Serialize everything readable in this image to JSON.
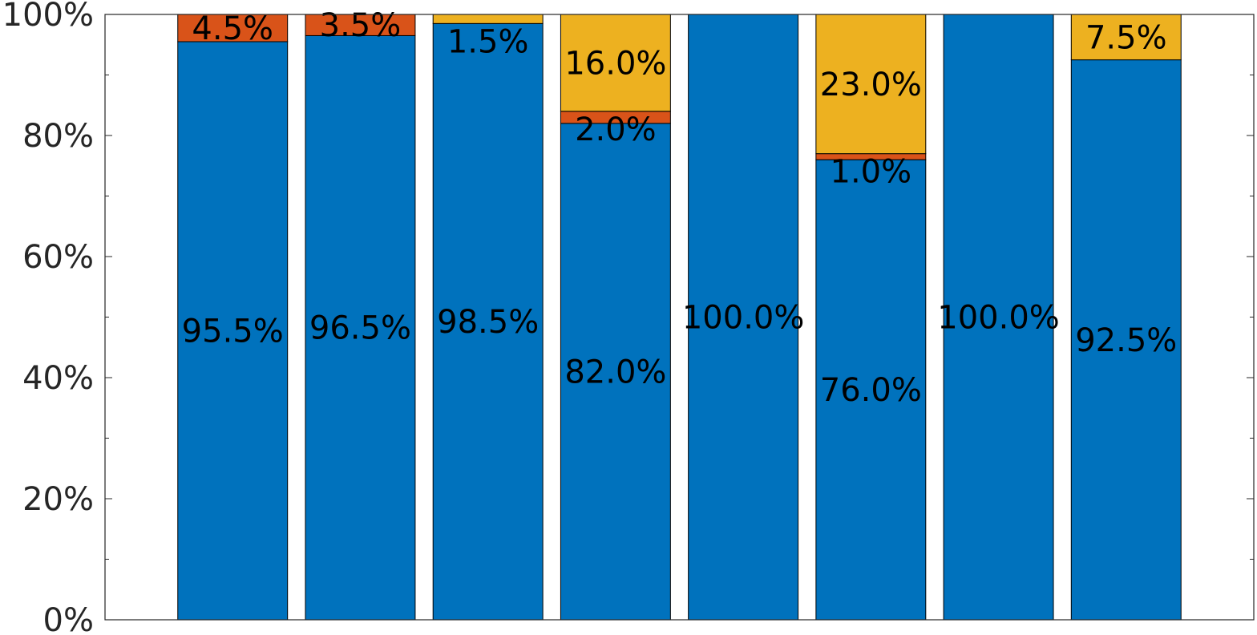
{
  "chart_data": {
    "type": "bar",
    "stacked": true,
    "categories": [
      "",
      "",
      "",
      "",
      "",
      "",
      "",
      ""
    ],
    "series": [
      {
        "color": "#0072BD",
        "values": [
          95.5,
          96.5,
          98.5,
          82.0,
          100.0,
          76.0,
          100.0,
          92.5
        ],
        "labels": [
          "95.5%",
          "96.5%",
          "98.5%",
          "82.0%",
          "100.0%",
          "76.0%",
          "100.0%",
          "92.5%"
        ]
      },
      {
        "color": "#D95319",
        "values": [
          4.5,
          3.5,
          0,
          2.0,
          0,
          1.0,
          0,
          0
        ],
        "labels": [
          "4.5%",
          "3.5%",
          "",
          "2.0%",
          "",
          "1.0%",
          "",
          ""
        ]
      },
      {
        "color": "#EDB120",
        "values": [
          0,
          0,
          1.5,
          16.0,
          0,
          23.0,
          0,
          7.5
        ],
        "labels": [
          "",
          "",
          "1.5%",
          "16.0%",
          "",
          "23.0%",
          "",
          "7.5%"
        ]
      }
    ],
    "ylim": [
      0,
      100
    ],
    "yticks": [
      0,
      20,
      40,
      60,
      80,
      100
    ],
    "ytick_labels": [
      "0%",
      "20%",
      "40%",
      "60%",
      "80%",
      "100%"
    ],
    "title": "",
    "xlabel": "",
    "ylabel": "",
    "grid": false,
    "legend": "none"
  }
}
